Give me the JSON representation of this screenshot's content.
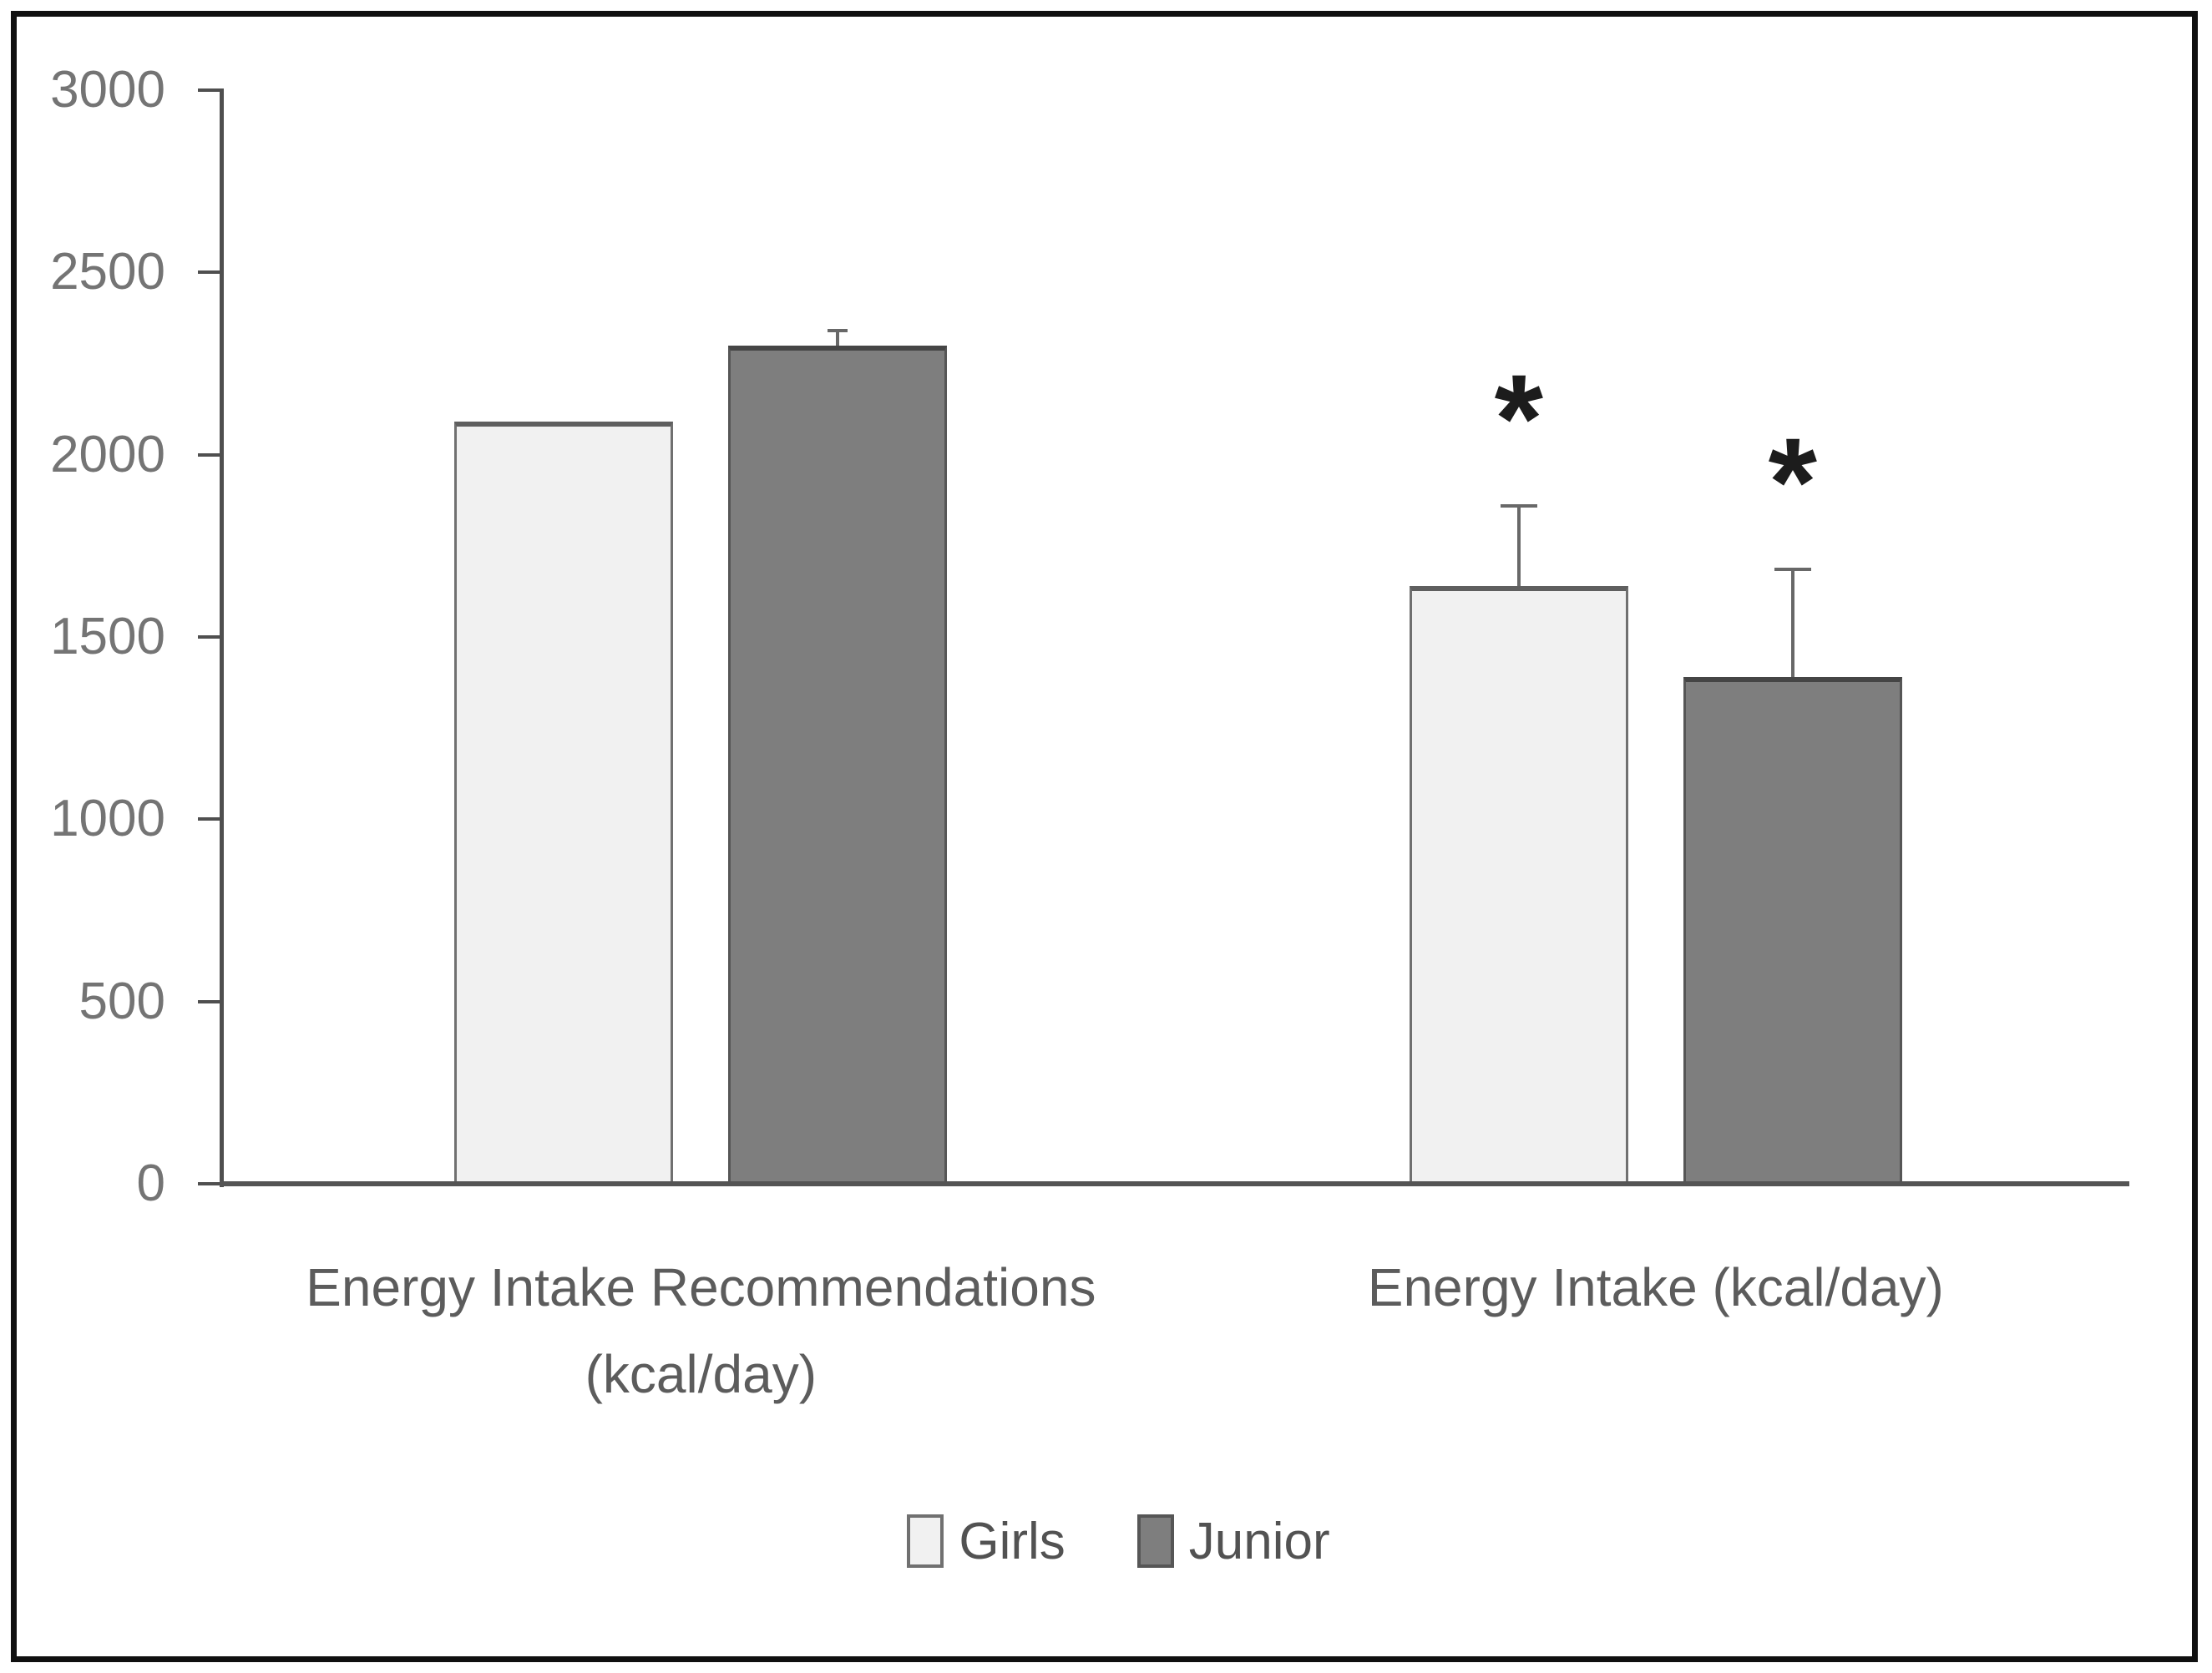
{
  "figure": {
    "background": "#ffffff",
    "frame_color": "#101010"
  },
  "chart_data": {
    "type": "bar",
    "title": "",
    "xlabel": "",
    "ylabel": "",
    "categories": [
      "Energy Intake Recommendations (kcal/day)",
      "Energy Intake (kcal/day)"
    ],
    "category_lines": [
      [
        "Energy Intake Recommendations",
        "(kcal/day)"
      ],
      [
        "Energy Intake (kcal/day)"
      ]
    ],
    "series": [
      {
        "name": "Girls",
        "values": [
          2090,
          1640
        ],
        "errors_plus": [
          0,
          220
        ],
        "fill": "#f1f1f1",
        "border": "#707070",
        "edge": "#5f5f5f"
      },
      {
        "name": "Junior",
        "values": [
          2300,
          1390
        ],
        "errors_plus": [
          40,
          295
        ],
        "fill": "#7e7e7e",
        "border": "#565656",
        "edge": "#454545"
      }
    ],
    "significance_markers": [
      {
        "category_index": 1,
        "series_index": 0,
        "symbol": "*"
      },
      {
        "category_index": 1,
        "series_index": 1,
        "symbol": "*"
      }
    ],
    "ylim": [
      0,
      3000
    ],
    "ytick_interval": 500,
    "ytick_labels": [
      "0",
      "500",
      "1000",
      "1500",
      "2000",
      "2500",
      "3000"
    ],
    "grid": false,
    "legend": {
      "position": "bottom",
      "entries": [
        "Girls",
        "Junior"
      ]
    },
    "axis_color": "#4f4f4f",
    "baseline_color": "#545454",
    "error_bar_color": "#686868",
    "tick_label_color": "#747474",
    "category_label_color": "#5c5c5c",
    "marker_color": "#1c1c1c"
  }
}
